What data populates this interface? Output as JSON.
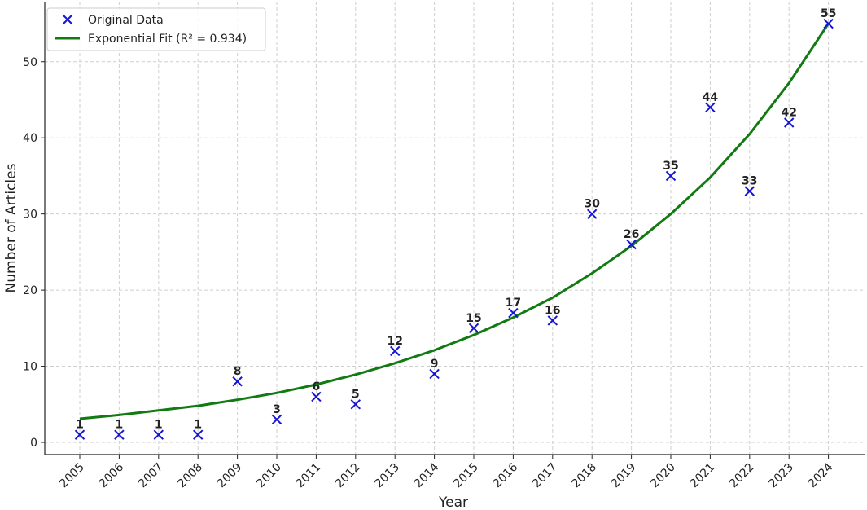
{
  "chart_data": {
    "type": "scatter",
    "xlabel": "Year",
    "ylabel": "Number of Articles",
    "x": [
      "2005",
      "2006",
      "2007",
      "2008",
      "2009",
      "2010",
      "2011",
      "2012",
      "2013",
      "2014",
      "2015",
      "2016",
      "2017",
      "2018",
      "2019",
      "2020",
      "2021",
      "2022",
      "2023",
      "2024"
    ],
    "ylim": [
      -1.7,
      57.5
    ],
    "yticks": [
      0,
      10,
      20,
      30,
      40,
      50
    ],
    "grid": true,
    "legend_position": "top-left",
    "series": [
      {
        "name": "Original Data",
        "kind": "scatter",
        "marker": "x",
        "color": "#1515d4",
        "values": [
          1,
          1,
          1,
          1,
          8,
          3,
          6,
          5,
          12,
          9,
          15,
          17,
          16,
          30,
          26,
          35,
          44,
          33,
          42,
          55
        ],
        "labels": [
          "1",
          "1",
          "1",
          "1",
          "8",
          "3",
          "6",
          "5",
          "12",
          "9",
          "15",
          "17",
          "16",
          "30",
          "26",
          "35",
          "44",
          "33",
          "42",
          "55"
        ]
      },
      {
        "name": "Exponential Fit (R² = 0.934)",
        "kind": "line",
        "color": "#117a11",
        "values": [
          3.1,
          3.6,
          4.2,
          4.8,
          5.6,
          6.5,
          7.6,
          8.9,
          10.4,
          12.1,
          14.1,
          16.4,
          19.0,
          22.2,
          25.8,
          30.0,
          34.8,
          40.5,
          47.2,
          55.0
        ]
      }
    ]
  }
}
